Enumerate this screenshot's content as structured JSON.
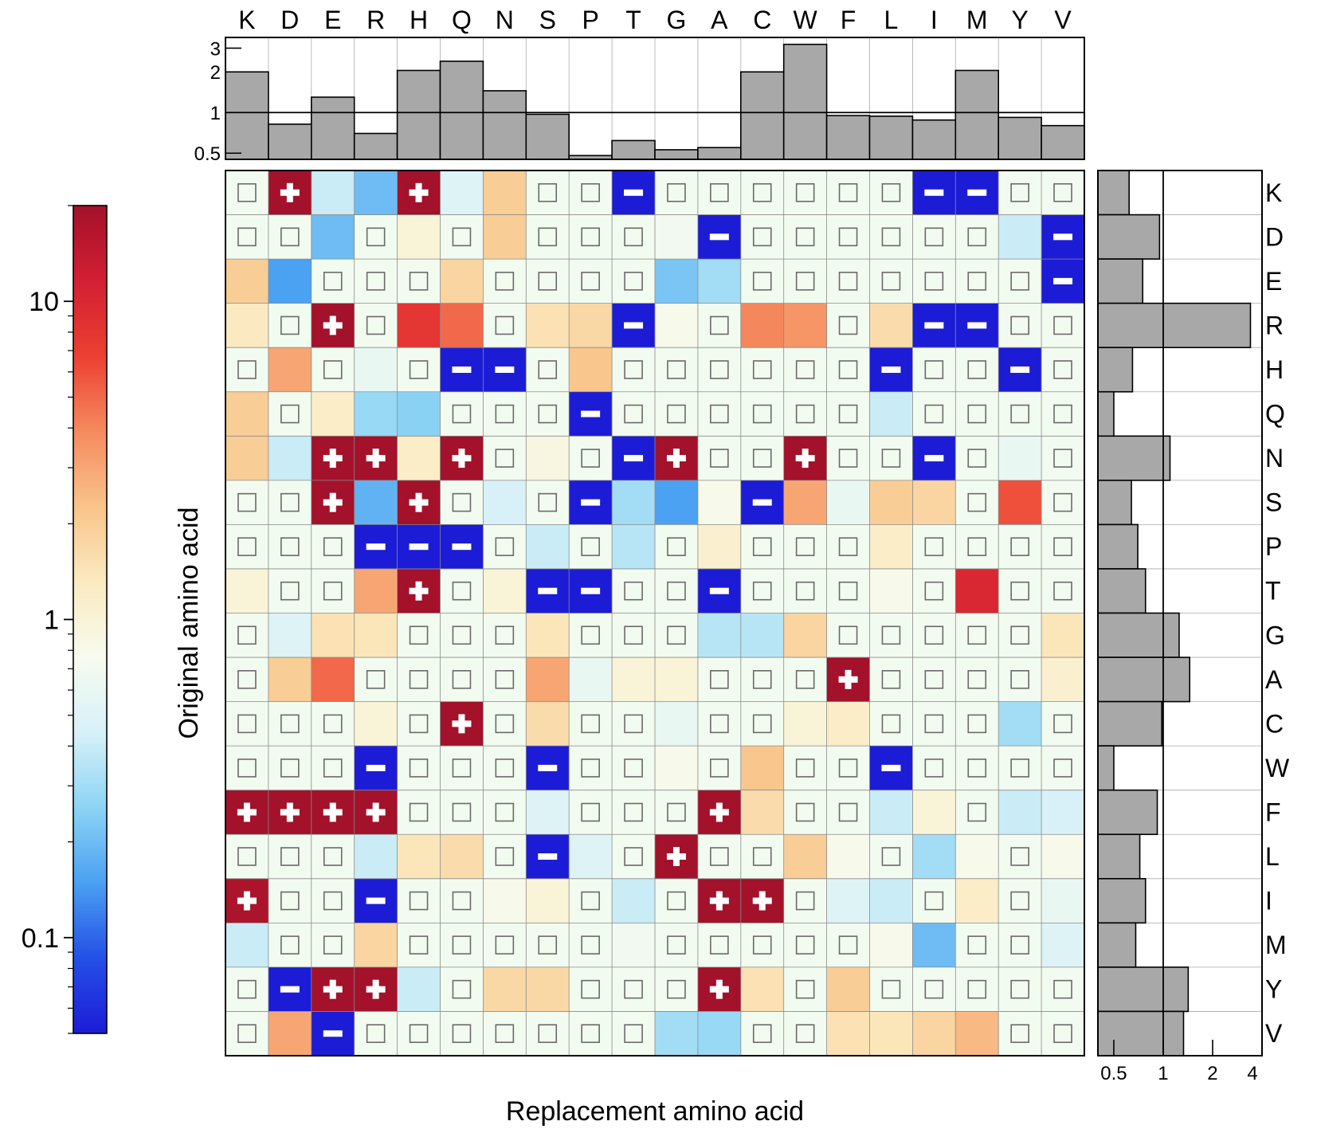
{
  "chart_data": {
    "type": "heatmap",
    "xlabel": "Replacement amino acid",
    "ylabel": "Original amino acid",
    "columns": [
      "K",
      "D",
      "E",
      "R",
      "H",
      "Q",
      "N",
      "S",
      "P",
      "T",
      "G",
      "A",
      "C",
      "W",
      "F",
      "L",
      "I",
      "M",
      "Y",
      "V"
    ],
    "rows": [
      "K",
      "D",
      "E",
      "R",
      "H",
      "Q",
      "N",
      "S",
      "P",
      "T",
      "G",
      "A",
      "C",
      "W",
      "F",
      "L",
      "I",
      "M",
      "Y",
      "V"
    ],
    "colorbar": {
      "scale": "log",
      "range": [
        0.05,
        20
      ],
      "ticks": [
        0.1,
        1,
        10
      ],
      "tick_labels": [
        "0.1",
        "1",
        "10"
      ],
      "colormap": [
        "#1c1cd6",
        "#2450e6",
        "#4aa0f2",
        "#8cd4f4",
        "#d7f1f8",
        "#f7fbef",
        "#fbeac0",
        "#f9c48a",
        "#f58a5e",
        "#ec4032",
        "#d31f33",
        "#a3112a"
      ]
    },
    "cells": [
      [
        null,
        20,
        0.4,
        0.2,
        20,
        0.5,
        2,
        null,
        null,
        0.05,
        null,
        null,
        null,
        null,
        null,
        null,
        0.05,
        0.05,
        null,
        null
      ],
      [
        null,
        null,
        0.2,
        null,
        1,
        null,
        2,
        null,
        null,
        null,
        0.7,
        0.05,
        null,
        null,
        null,
        null,
        null,
        null,
        0.4,
        0.05
      ],
      [
        2,
        0.15,
        null,
        null,
        null,
        1.8,
        null,
        null,
        null,
        null,
        0.22,
        0.3,
        null,
        null,
        null,
        null,
        null,
        null,
        null,
        0.05
      ],
      [
        1.3,
        null,
        20,
        null,
        8,
        5,
        null,
        1.5,
        1.7,
        0.05,
        0.8,
        null,
        4,
        3.5,
        null,
        1.6,
        0.05,
        0.05,
        null,
        null
      ],
      [
        null,
        3,
        null,
        0.6,
        null,
        0.05,
        0.05,
        null,
        2.2,
        null,
        null,
        null,
        null,
        null,
        null,
        0.05,
        null,
        null,
        0.05,
        null
      ],
      [
        2,
        null,
        1.2,
        0.28,
        0.25,
        null,
        null,
        null,
        0.05,
        null,
        null,
        null,
        null,
        null,
        null,
        0.4,
        null,
        null,
        null,
        null
      ],
      [
        2,
        0.4,
        20,
        20,
        1.2,
        20,
        null,
        0.9,
        null,
        0.05,
        20,
        null,
        null,
        20,
        null,
        null,
        0.05,
        null,
        0.6,
        null
      ],
      [
        null,
        null,
        20,
        0.18,
        20,
        null,
        0.45,
        null,
        0.05,
        0.3,
        0.15,
        0.8,
        0.05,
        3,
        0.6,
        2,
        1.8,
        null,
        6,
        null
      ],
      [
        null,
        null,
        null,
        0.05,
        0.05,
        0.05,
        null,
        0.4,
        null,
        0.35,
        null,
        1.1,
        null,
        null,
        null,
        1.2,
        null,
        null,
        null,
        null
      ],
      [
        1,
        null,
        null,
        3,
        20,
        null,
        1,
        0.05,
        0.05,
        null,
        null,
        0.05,
        null,
        null,
        null,
        0.8,
        null,
        10,
        null,
        null
      ],
      [
        null,
        0.5,
        1.5,
        1.4,
        null,
        null,
        null,
        1.4,
        null,
        null,
        null,
        0.35,
        0.35,
        1.8,
        null,
        null,
        null,
        null,
        null,
        1.4
      ],
      [
        null,
        2,
        5,
        null,
        null,
        null,
        null,
        3,
        0.6,
        1,
        1,
        null,
        null,
        null,
        20,
        null,
        null,
        null,
        null,
        1.1
      ],
      [
        null,
        null,
        null,
        1,
        null,
        20,
        null,
        1.6,
        null,
        null,
        0.6,
        null,
        null,
        1,
        1.2,
        null,
        null,
        null,
        0.3,
        null
      ],
      [
        null,
        null,
        null,
        0.05,
        null,
        null,
        null,
        0.05,
        null,
        null,
        0.8,
        null,
        2.2,
        null,
        null,
        0.05,
        null,
        null,
        null,
        null
      ],
      [
        20,
        20,
        20,
        20,
        null,
        null,
        null,
        0.5,
        null,
        null,
        null,
        20,
        1.6,
        null,
        null,
        0.4,
        1,
        null,
        0.4,
        0.45
      ],
      [
        null,
        null,
        null,
        0.4,
        1.4,
        1.6,
        null,
        0.05,
        0.5,
        null,
        20,
        null,
        null,
        2,
        0.8,
        null,
        0.3,
        0.8,
        null,
        0.8
      ],
      [
        18,
        null,
        null,
        0.05,
        null,
        null,
        0.8,
        1,
        null,
        0.4,
        null,
        20,
        20,
        null,
        0.5,
        0.4,
        null,
        1.2,
        null,
        0.6
      ],
      [
        0.4,
        null,
        null,
        1.8,
        null,
        null,
        null,
        null,
        null,
        0.7,
        null,
        null,
        null,
        null,
        null,
        0.8,
        0.2,
        null,
        null,
        0.5
      ],
      [
        null,
        0.05,
        20,
        20,
        0.4,
        null,
        1.7,
        1.7,
        null,
        null,
        null,
        20,
        1.5,
        null,
        2,
        null,
        null,
        null,
        null,
        null
      ],
      [
        null,
        3,
        0.05,
        null,
        null,
        null,
        null,
        null,
        null,
        null,
        0.3,
        0.28,
        null,
        null,
        1.5,
        1.4,
        1.8,
        2.5,
        null,
        null
      ]
    ],
    "column_bars": {
      "values": [
        2.0,
        0.82,
        1.3,
        0.7,
        2.05,
        2.4,
        1.45,
        0.97,
        0.48,
        0.62,
        0.53,
        0.55,
        2.0,
        3.2,
        0.95,
        0.94,
        0.88,
        2.05,
        0.92,
        0.8
      ],
      "axis": {
        "scale": "log",
        "range": [
          0.45,
          3.6
        ],
        "ticks": [
          0.5,
          1,
          2,
          3
        ],
        "tick_labels": [
          "0.5",
          "1",
          "2",
          "3"
        ],
        "reference_line": 1
      }
    },
    "row_bars": {
      "values": [
        0.62,
        0.95,
        0.75,
        3.4,
        0.65,
        0.5,
        1.1,
        0.64,
        0.7,
        0.78,
        1.25,
        1.45,
        0.98,
        0.5,
        0.92,
        0.72,
        0.78,
        0.68,
        1.42,
        1.33
      ],
      "axis": {
        "scale": "log",
        "range": [
          0.4,
          4
        ],
        "ticks": [
          0.5,
          1,
          2,
          4
        ],
        "tick_labels": [
          "0.5",
          "1",
          "2",
          "4"
        ],
        "reference_line": 1
      }
    }
  }
}
